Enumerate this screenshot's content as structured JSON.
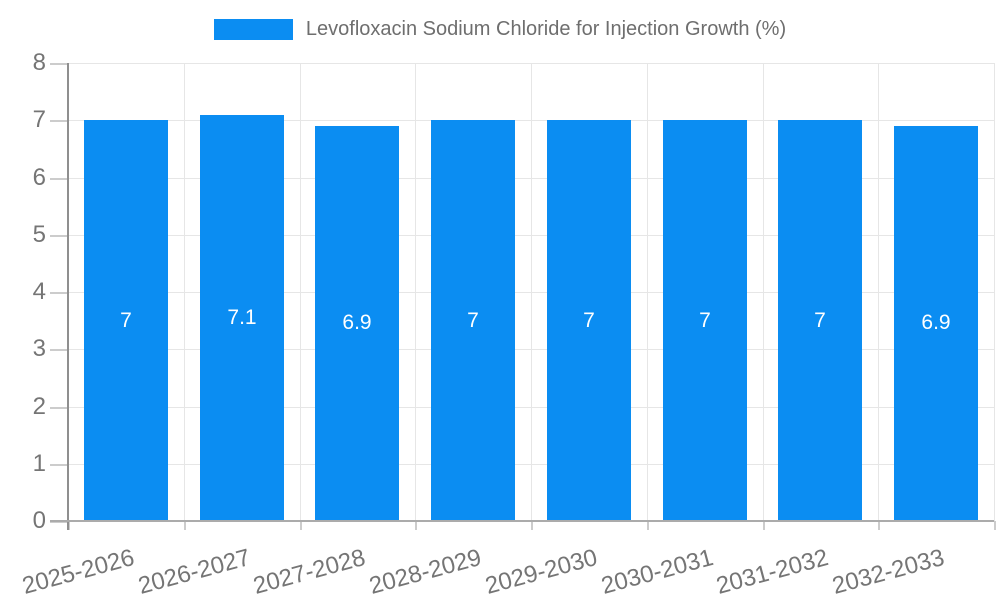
{
  "legend": {
    "label": "Levofloxacin Sodium Chloride for Injection Growth (%)"
  },
  "chart_data": {
    "type": "bar",
    "title": "",
    "categories": [
      "2025-2026",
      "2026-2027",
      "2027-2028",
      "2028-2029",
      "2029-2030",
      "2030-2031",
      "2031-2032",
      "2032-2033"
    ],
    "series": [
      {
        "name": "Levofloxacin Sodium Chloride for Injection Growth (%)",
        "values": [
          7,
          7.1,
          6.9,
          7,
          7,
          7,
          7,
          6.9
        ]
      }
    ],
    "xlabel": "",
    "ylabel": "",
    "ylim": [
      0,
      8
    ],
    "ytick_step": 1,
    "yticks": [
      0,
      1,
      2,
      3,
      4,
      5,
      6,
      7,
      8
    ],
    "grid": true,
    "legend_position": "top",
    "bar_labels_shown": true,
    "x_label_rotation_deg": -15
  },
  "colors": {
    "bar": "#0B8DF2",
    "bar_label": "#ffffff",
    "gridline": "#e6e6e6",
    "y_axis_line": "#8f8f8f",
    "x_axis_line": "#ababab",
    "tick_mark": "#cccccc",
    "axis_text": "#757575",
    "legend_text": "#6e6e6e",
    "background": "#ffffff"
  }
}
